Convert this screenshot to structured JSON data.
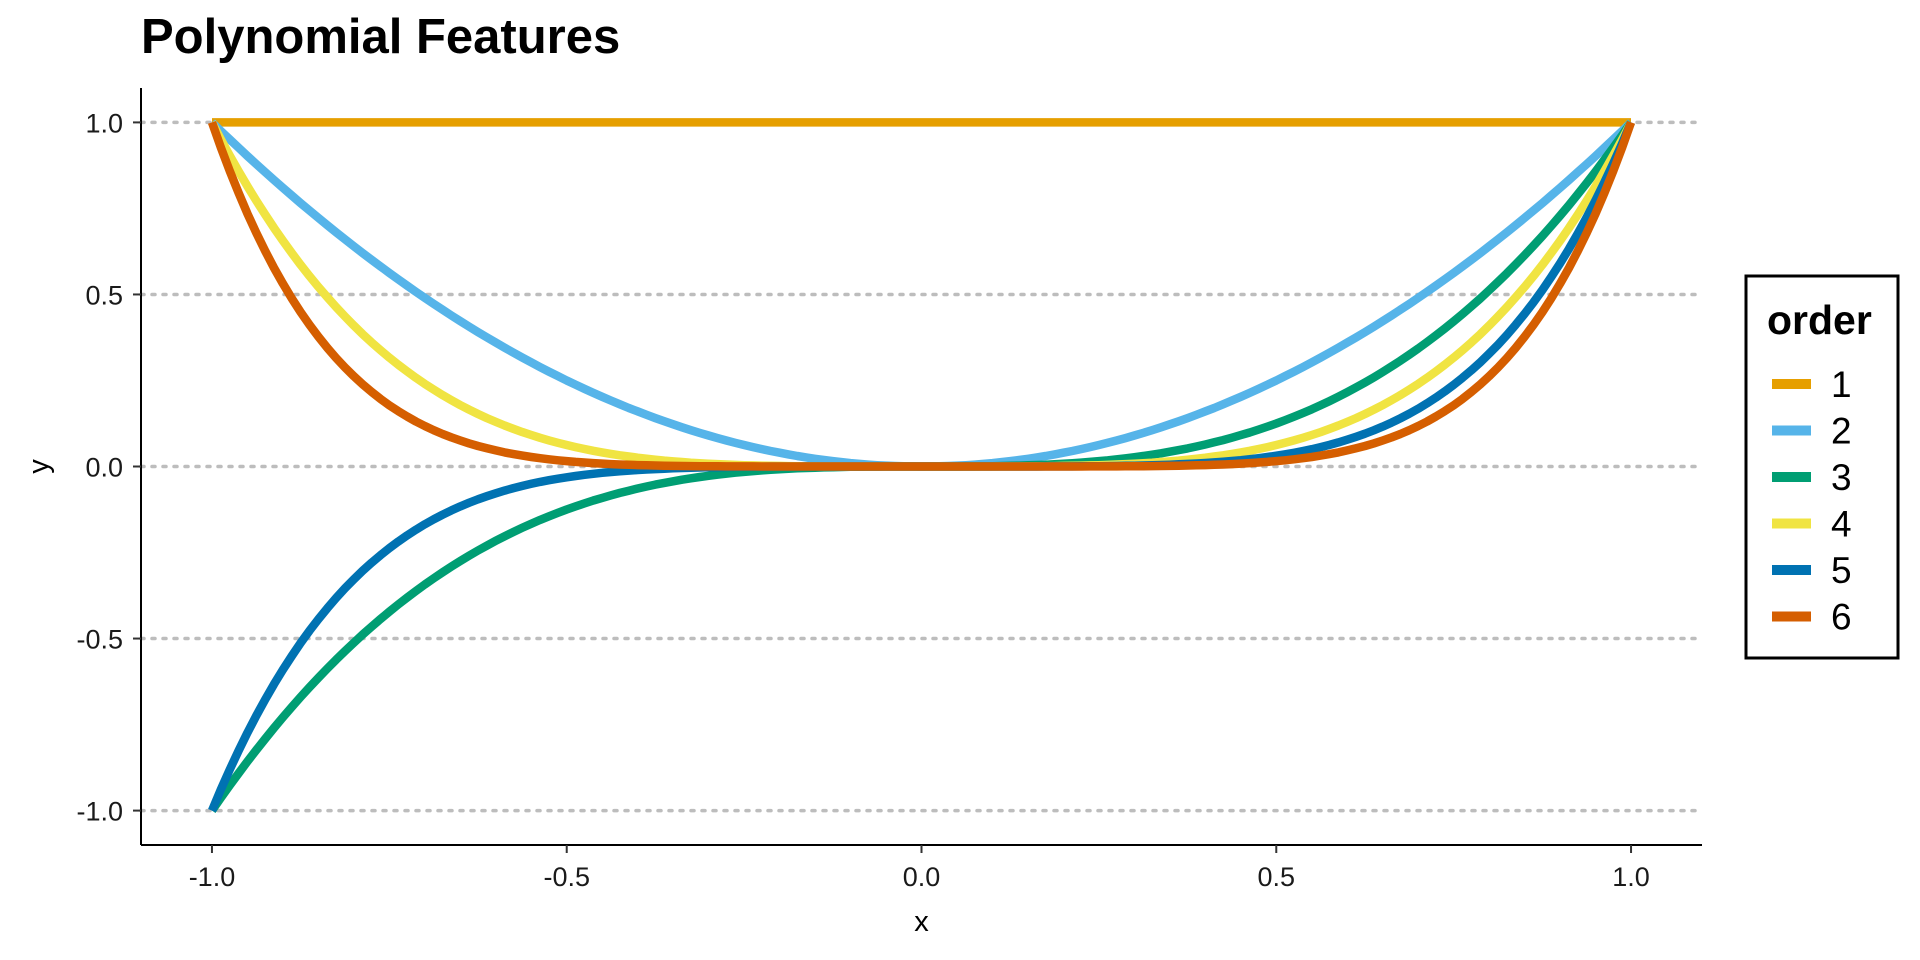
{
  "chart_data": {
    "type": "line",
    "title": "Polynomial Features",
    "xlabel": "x",
    "ylabel": "y",
    "xlim": [
      -1.1,
      1.1
    ],
    "ylim": [
      -1.1,
      1.1
    ],
    "x_ticks": [
      -1.0,
      -0.5,
      0.0,
      0.5,
      1.0
    ],
    "x_tick_labels": [
      "-1.0",
      "-0.5",
      "0.0",
      "0.5",
      "1.0"
    ],
    "y_ticks": [
      -1.0,
      -0.5,
      0.0,
      0.5,
      1.0
    ],
    "y_tick_labels": [
      "-1.0",
      "-0.5",
      "0.0",
      "0.5",
      "1.0"
    ],
    "grid": "horizontal dotted",
    "legend": {
      "title": "order",
      "placement": "right"
    },
    "x": [
      -1.0,
      -0.9,
      -0.8,
      -0.7,
      -0.6,
      -0.5,
      -0.4,
      -0.3,
      -0.2,
      -0.1,
      0.0,
      0.1,
      0.2,
      0.3,
      0.4,
      0.5,
      0.6,
      0.7,
      0.8,
      0.9,
      1.0
    ],
    "series": [
      {
        "name": "1",
        "color": "#E69F00",
        "values": [
          1,
          1,
          1,
          1,
          1,
          1,
          1,
          1,
          1,
          1,
          1,
          1,
          1,
          1,
          1,
          1,
          1,
          1,
          1,
          1,
          1
        ]
      },
      {
        "name": "2",
        "color": "#56B4E9",
        "values": [
          1.0,
          0.81,
          0.64,
          0.49,
          0.36,
          0.25,
          0.16,
          0.09,
          0.04,
          0.01,
          0.0,
          0.01,
          0.04,
          0.09,
          0.16,
          0.25,
          0.36,
          0.49,
          0.64,
          0.81,
          1.0
        ]
      },
      {
        "name": "3",
        "color": "#009E73",
        "values": [
          -1.0,
          -0.729,
          -0.512,
          -0.343,
          -0.216,
          -0.125,
          -0.064,
          -0.027,
          -0.008,
          -0.001,
          0.0,
          0.001,
          0.008,
          0.027,
          0.064,
          0.125,
          0.216,
          0.343,
          0.512,
          0.729,
          1.0
        ]
      },
      {
        "name": "4",
        "color": "#F0E442",
        "values": [
          1.0,
          0.6561,
          0.4096,
          0.2401,
          0.1296,
          0.0625,
          0.0256,
          0.0081,
          0.0016,
          0.0001,
          0.0,
          0.0001,
          0.0016,
          0.0081,
          0.0256,
          0.0625,
          0.1296,
          0.2401,
          0.4096,
          0.6561,
          1.0
        ]
      },
      {
        "name": "5",
        "color": "#0072B2",
        "values": [
          -1.0,
          -0.5905,
          -0.3277,
          -0.1681,
          -0.0778,
          -0.0313,
          -0.0102,
          -0.0024,
          -0.0003,
          0.0,
          0.0,
          0.0,
          0.0003,
          0.0024,
          0.0102,
          0.0313,
          0.0778,
          0.1681,
          0.3277,
          0.5905,
          1.0
        ]
      },
      {
        "name": "6",
        "color": "#D55E00",
        "values": [
          1.0,
          0.5314,
          0.2621,
          0.1176,
          0.0467,
          0.0156,
          0.0041,
          0.0007,
          0.0001,
          0.0,
          0.0,
          0.0,
          0.0001,
          0.0007,
          0.0041,
          0.0156,
          0.0467,
          0.1176,
          0.2621,
          0.5314,
          1.0
        ]
      }
    ]
  }
}
